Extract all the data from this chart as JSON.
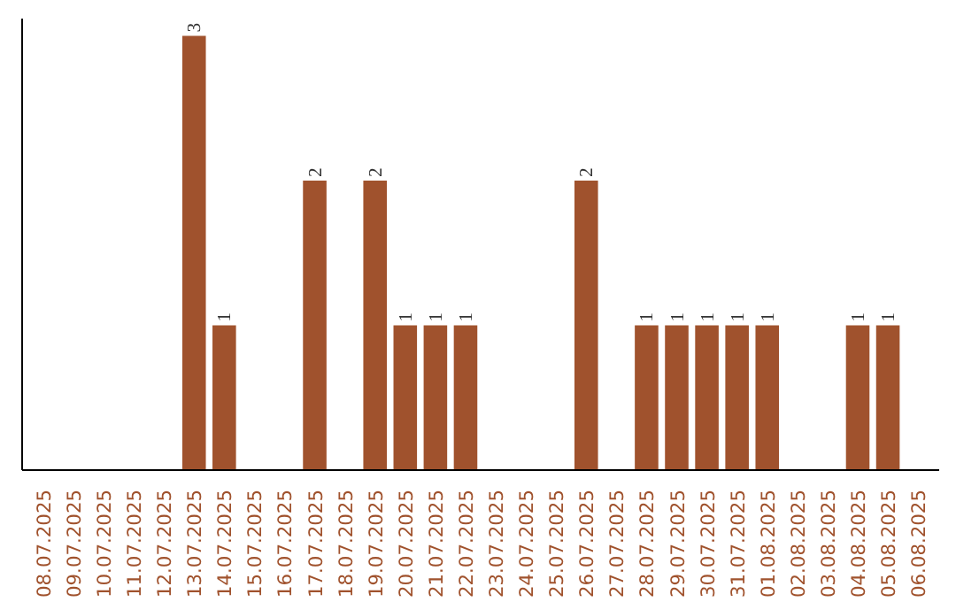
{
  "chart_data": {
    "type": "bar",
    "categories": [
      "08.07.2025",
      "09.07.2025",
      "10.07.2025",
      "11.07.2025",
      "12.07.2025",
      "13.07.2025",
      "14.07.2025",
      "15.07.2025",
      "16.07.2025",
      "17.07.2025",
      "18.07.2025",
      "19.07.2025",
      "20.07.2025",
      "21.07.2025",
      "22.07.2025",
      "23.07.2025",
      "24.07.2025",
      "25.07.2025",
      "26.07.2025",
      "27.07.2025",
      "28.07.2025",
      "29.07.2025",
      "30.07.2025",
      "31.07.2025",
      "01.08.2025",
      "02.08.2025",
      "03.08.2025",
      "04.08.2025",
      "05.08.2025",
      "06.08.2025"
    ],
    "values": [
      0,
      0,
      0,
      0,
      0,
      3,
      1,
      0,
      0,
      2,
      0,
      2,
      1,
      1,
      1,
      0,
      0,
      0,
      2,
      0,
      1,
      1,
      1,
      1,
      1,
      0,
      0,
      1,
      1,
      0
    ],
    "value_labels": [
      null,
      null,
      null,
      null,
      null,
      "3",
      "1",
      null,
      null,
      "2",
      null,
      "2",
      "1",
      "1",
      "1",
      null,
      null,
      null,
      "2",
      null,
      "1",
      "1",
      "1",
      "1",
      "1",
      null,
      null,
      "1",
      "1",
      null
    ],
    "color": "#a0522d",
    "tick_labels": "x"
  }
}
